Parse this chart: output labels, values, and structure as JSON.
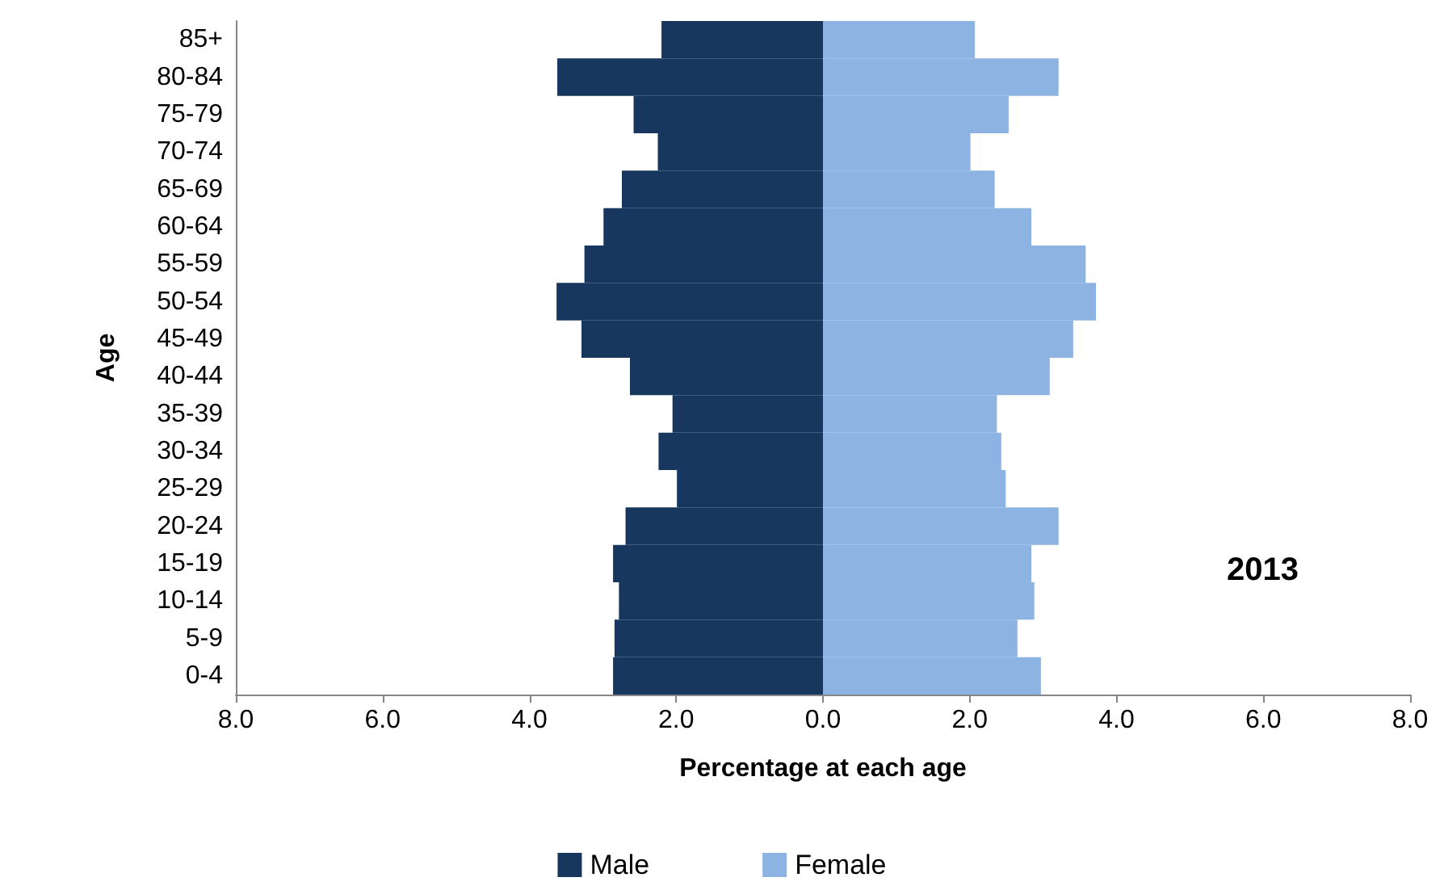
{
  "chart_data": {
    "type": "bar",
    "orientation": "horizontal",
    "stacked": true,
    "categories": [
      "85+",
      "80-84",
      "75-79",
      "70-74",
      "65-69",
      "60-64",
      "55-59",
      "50-54",
      "45-49",
      "40-44",
      "35-39",
      "30-34",
      "25-29",
      "20-24",
      "15-19",
      "10-14",
      "5-9",
      "0-4"
    ],
    "series": [
      {
        "name": "Male",
        "color": "#17375e",
        "values": [
          -2.2,
          -3.62,
          -2.58,
          -2.25,
          -2.74,
          -2.99,
          -3.25,
          -3.63,
          -3.29,
          -2.63,
          -2.05,
          -2.24,
          -1.99,
          -2.69,
          -2.86,
          -2.78,
          -2.84,
          -2.86
        ]
      },
      {
        "name": "Female",
        "color": "#8db3e2",
        "values": [
          2.07,
          3.21,
          2.53,
          2.01,
          2.34,
          2.84,
          3.58,
          3.72,
          3.41,
          3.09,
          2.37,
          2.43,
          2.49,
          3.21,
          2.84,
          2.88,
          2.65,
          2.97
        ]
      }
    ],
    "xlim": [
      -8,
      8
    ],
    "xticks": [
      {
        "value": -8,
        "label": "8.0"
      },
      {
        "value": -6,
        "label": "6.0"
      },
      {
        "value": -4,
        "label": "4.0"
      },
      {
        "value": -2,
        "label": "2.0"
      },
      {
        "value": 0,
        "label": "0.0"
      },
      {
        "value": 2,
        "label": "2.0"
      },
      {
        "value": 4,
        "label": "4.0"
      },
      {
        "value": 6,
        "label": "6.0"
      },
      {
        "value": 8,
        "label": "8.0"
      }
    ],
    "xlabel": "Percentage at each age",
    "ylabel": "Age",
    "annotations": [
      "2013"
    ],
    "legend": "bottom",
    "grid": false
  }
}
